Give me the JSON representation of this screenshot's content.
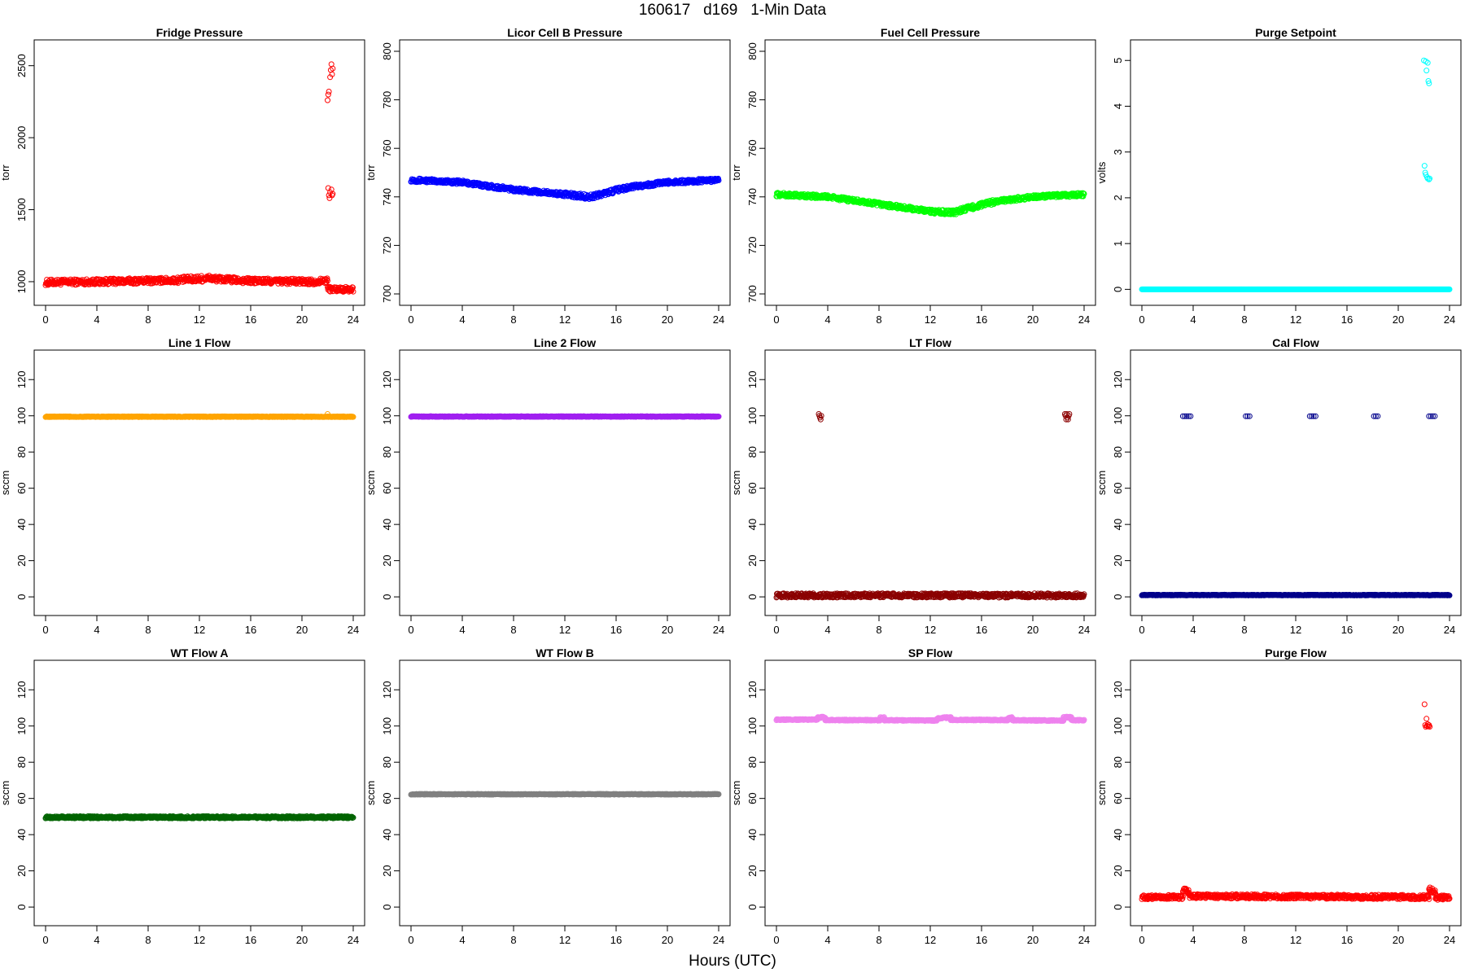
{
  "figure": {
    "title": "160617   d169   1-Min Data",
    "xlabel": "Hours (UTC)"
  },
  "chart_data": [
    {
      "type": "scatter",
      "title": "Fridge Pressure",
      "ylabel": "torr",
      "color": "#ff0000",
      "xlim": [
        0,
        24
      ],
      "ylim": [
        915,
        2600
      ],
      "xticks": [
        0,
        4,
        8,
        12,
        16,
        20,
        24
      ],
      "yticks": [
        1000,
        1500,
        2000,
        2500
      ],
      "series": [
        {
          "segments": [
            {
              "x0": 0,
              "x1": 4,
              "y0": 995,
              "y1": 1000,
              "jitter": 20
            },
            {
              "x0": 4,
              "x1": 10,
              "y0": 1000,
              "y1": 1010,
              "jitter": 20
            },
            {
              "x0": 10,
              "x1": 13,
              "y0": 1010,
              "y1": 1025,
              "jitter": 22
            },
            {
              "x0": 13,
              "x1": 16,
              "y0": 1020,
              "y1": 1005,
              "jitter": 20
            },
            {
              "x0": 16,
              "x1": 21,
              "y0": 1005,
              "y1": 1000,
              "jitter": 20
            },
            {
              "x0": 21,
              "x1": 22,
              "y0": 1000,
              "y1": 1010,
              "jitter": 18
            },
            {
              "x0": 22,
              "x1": 24,
              "y0": 950,
              "y1": 945,
              "jitter": 18
            }
          ]
        },
        {
          "points": [
            {
              "x": 22.0,
              "y": 2260
            },
            {
              "x": 22.05,
              "y": 2300
            },
            {
              "x": 22.1,
              "y": 2320
            },
            {
              "x": 22.2,
              "y": 2420
            },
            {
              "x": 22.25,
              "y": 2470
            },
            {
              "x": 22.3,
              "y": 2510
            },
            {
              "x": 22.35,
              "y": 2440
            },
            {
              "x": 22.4,
              "y": 2480
            },
            {
              "x": 22.05,
              "y": 1650
            },
            {
              "x": 22.1,
              "y": 1600
            },
            {
              "x": 22.15,
              "y": 1580
            },
            {
              "x": 22.2,
              "y": 1620
            },
            {
              "x": 22.3,
              "y": 1640
            },
            {
              "x": 22.35,
              "y": 1600
            },
            {
              "x": 22.4,
              "y": 1610
            }
          ]
        }
      ]
    },
    {
      "type": "scatter",
      "title": "Licor Cell B Pressure",
      "ylabel": "torr",
      "color": "#0000ff",
      "xlim": [
        0,
        24
      ],
      "ylim": [
        700,
        800
      ],
      "xticks": [
        0,
        4,
        8,
        12,
        16,
        20,
        24
      ],
      "yticks": [
        700,
        720,
        740,
        760,
        780,
        800
      ],
      "series": [
        {
          "segments": [
            {
              "x0": 0,
              "x1": 4,
              "y0": 747,
              "y1": 746,
              "jitter": 0.8
            },
            {
              "x0": 4,
              "x1": 8,
              "y0": 746,
              "y1": 743,
              "jitter": 0.8
            },
            {
              "x0": 8,
              "x1": 12,
              "y0": 743,
              "y1": 741,
              "jitter": 0.8
            },
            {
              "x0": 12,
              "x1": 14,
              "y0": 741,
              "y1": 740,
              "jitter": 1.0
            },
            {
              "x0": 14,
              "x1": 17,
              "y0": 740,
              "y1": 744,
              "jitter": 1.0
            },
            {
              "x0": 17,
              "x1": 20,
              "y0": 744,
              "y1": 746,
              "jitter": 0.8
            },
            {
              "x0": 20,
              "x1": 24,
              "y0": 746,
              "y1": 747,
              "jitter": 0.8
            }
          ]
        }
      ]
    },
    {
      "type": "scatter",
      "title": "Fuel Cell Pressure",
      "ylabel": "torr",
      "color": "#00ff00",
      "xlim": [
        0,
        24
      ],
      "ylim": [
        700,
        800
      ],
      "xticks": [
        0,
        4,
        8,
        12,
        16,
        20,
        24
      ],
      "yticks": [
        700,
        720,
        740,
        760,
        780,
        800
      ],
      "series": [
        {
          "segments": [
            {
              "x0": 0,
              "x1": 4,
              "y0": 741,
              "y1": 740,
              "jitter": 0.8
            },
            {
              "x0": 4,
              "x1": 8,
              "y0": 740,
              "y1": 737,
              "jitter": 0.8
            },
            {
              "x0": 8,
              "x1": 12,
              "y0": 737,
              "y1": 734,
              "jitter": 0.8
            },
            {
              "x0": 12,
              "x1": 14,
              "y0": 734,
              "y1": 733.5,
              "jitter": 1.0
            },
            {
              "x0": 14,
              "x1": 17,
              "y0": 734,
              "y1": 738,
              "jitter": 1.0
            },
            {
              "x0": 17,
              "x1": 20,
              "y0": 738,
              "y1": 740,
              "jitter": 0.8
            },
            {
              "x0": 20,
              "x1": 24,
              "y0": 740,
              "y1": 741,
              "jitter": 0.8
            }
          ]
        }
      ]
    },
    {
      "type": "scatter",
      "title": "Purge Setpoint",
      "ylabel": "volts",
      "color": "#00ffff",
      "xlim": [
        0,
        24
      ],
      "ylim": [
        -0.1,
        5.2
      ],
      "xticks": [
        0,
        4,
        8,
        12,
        16,
        20,
        24
      ],
      "yticks": [
        0,
        1,
        2,
        3,
        4,
        5
      ],
      "series": [
        {
          "segments": [
            {
              "x0": 0,
              "x1": 24,
              "y0": 0,
              "y1": 0,
              "jitter": 0
            }
          ]
        },
        {
          "points": [
            {
              "x": 22.0,
              "y": 5.0
            },
            {
              "x": 22.15,
              "y": 4.98
            },
            {
              "x": 22.3,
              "y": 4.95
            },
            {
              "x": 22.2,
              "y": 4.78
            },
            {
              "x": 22.35,
              "y": 4.55
            },
            {
              "x": 22.4,
              "y": 4.5
            },
            {
              "x": 22.05,
              "y": 2.7
            },
            {
              "x": 22.1,
              "y": 2.55
            },
            {
              "x": 22.15,
              "y": 2.5
            },
            {
              "x": 22.25,
              "y": 2.45
            },
            {
              "x": 22.3,
              "y": 2.42
            },
            {
              "x": 22.4,
              "y": 2.4
            },
            {
              "x": 22.45,
              "y": 2.42
            }
          ]
        }
      ]
    },
    {
      "type": "scatter",
      "title": "Line 1 Flow",
      "ylabel": "sccm",
      "color": "#ffa500",
      "xlim": [
        0,
        24
      ],
      "ylim": [
        -4,
        130
      ],
      "xticks": [
        0,
        4,
        8,
        12,
        16,
        20,
        24
      ],
      "yticks": [
        0,
        20,
        40,
        60,
        80,
        100,
        120
      ],
      "series": [
        {
          "segments": [
            {
              "x0": 0,
              "x1": 24,
              "y0": 99.5,
              "y1": 99.5,
              "jitter": 0.2
            }
          ]
        },
        {
          "points": [
            {
              "x": 22.0,
              "y": 101
            }
          ]
        }
      ]
    },
    {
      "type": "scatter",
      "title": "Line 2 Flow",
      "ylabel": "sccm",
      "color": "#a020f0",
      "xlim": [
        0,
        24
      ],
      "ylim": [
        -4,
        130
      ],
      "xticks": [
        0,
        4,
        8,
        12,
        16,
        20,
        24
      ],
      "yticks": [
        0,
        20,
        40,
        60,
        80,
        100,
        120
      ],
      "series": [
        {
          "segments": [
            {
              "x0": 0,
              "x1": 24,
              "y0": 99.6,
              "y1": 99.6,
              "jitter": 0.2
            }
          ]
        }
      ]
    },
    {
      "type": "scatter",
      "title": "LT Flow",
      "ylabel": "sccm",
      "color": "#8b0000",
      "xlim": [
        0,
        24
      ],
      "ylim": [
        -4,
        130
      ],
      "xticks": [
        0,
        4,
        8,
        12,
        16,
        20,
        24
      ],
      "yticks": [
        0,
        20,
        40,
        60,
        80,
        100,
        120
      ],
      "series": [
        {
          "segments": [
            {
              "x0": 0,
              "x1": 24,
              "y0": 0.8,
              "y1": 0.8,
              "jitter": 1.2
            }
          ]
        },
        {
          "points": [
            {
              "x": 3.3,
              "y": 101
            },
            {
              "x": 3.35,
              "y": 100
            },
            {
              "x": 3.4,
              "y": 99
            },
            {
              "x": 3.45,
              "y": 98
            },
            {
              "x": 3.5,
              "y": 100
            },
            {
              "x": 22.5,
              "y": 101
            },
            {
              "x": 22.55,
              "y": 100
            },
            {
              "x": 22.6,
              "y": 98
            },
            {
              "x": 22.65,
              "y": 101
            },
            {
              "x": 22.7,
              "y": 99
            },
            {
              "x": 22.75,
              "y": 98
            },
            {
              "x": 22.8,
              "y": 100
            },
            {
              "x": 22.85,
              "y": 101
            }
          ]
        }
      ]
    },
    {
      "type": "scatter",
      "title": "Cal Flow",
      "ylabel": "sccm",
      "color": "#00008b",
      "xlim": [
        0,
        24
      ],
      "ylim": [
        -4,
        130
      ],
      "xticks": [
        0,
        4,
        8,
        12,
        16,
        20,
        24
      ],
      "yticks": [
        0,
        20,
        40,
        60,
        80,
        100,
        120
      ],
      "series": [
        {
          "segments": [
            {
              "x0": 0,
              "x1": 24,
              "y0": 1.0,
              "y1": 1.0,
              "jitter": 0.2
            }
          ]
        },
        {
          "points": [
            {
              "x": 3.2,
              "y": 99.8
            },
            {
              "x": 3.35,
              "y": 99.8
            },
            {
              "x": 3.5,
              "y": 99.8
            },
            {
              "x": 3.65,
              "y": 99.8
            },
            {
              "x": 3.8,
              "y": 99.8
            },
            {
              "x": 8.1,
              "y": 99.8
            },
            {
              "x": 8.25,
              "y": 99.8
            },
            {
              "x": 8.4,
              "y": 99.8
            },
            {
              "x": 13.1,
              "y": 99.8
            },
            {
              "x": 13.25,
              "y": 99.8
            },
            {
              "x": 13.4,
              "y": 99.8
            },
            {
              "x": 13.55,
              "y": 99.8
            },
            {
              "x": 18.1,
              "y": 99.8
            },
            {
              "x": 18.25,
              "y": 99.8
            },
            {
              "x": 18.4,
              "y": 99.8
            },
            {
              "x": 22.4,
              "y": 99.8
            },
            {
              "x": 22.55,
              "y": 99.8
            },
            {
              "x": 22.7,
              "y": 99.8
            },
            {
              "x": 22.85,
              "y": 99.8
            }
          ]
        }
      ]
    },
    {
      "type": "scatter",
      "title": "WT Flow A",
      "ylabel": "sccm",
      "color": "#006400",
      "xlim": [
        0,
        24
      ],
      "ylim": [
        -4,
        130
      ],
      "xticks": [
        0,
        4,
        8,
        12,
        16,
        20,
        24
      ],
      "yticks": [
        0,
        20,
        40,
        60,
        80,
        100,
        120
      ],
      "series": [
        {
          "segments": [
            {
              "x0": 0,
              "x1": 24,
              "y0": 49.6,
              "y1": 49.6,
              "jitter": 0.6
            }
          ]
        }
      ]
    },
    {
      "type": "scatter",
      "title": "WT Flow B",
      "ylabel": "sccm",
      "color": "#808080",
      "xlim": [
        0,
        24
      ],
      "ylim": [
        -4,
        130
      ],
      "xticks": [
        0,
        4,
        8,
        12,
        16,
        20,
        24
      ],
      "yticks": [
        0,
        20,
        40,
        60,
        80,
        100,
        120
      ],
      "series": [
        {
          "segments": [
            {
              "x0": 0,
              "x1": 24,
              "y0": 62.3,
              "y1": 62.3,
              "jitter": 0.2
            }
          ]
        }
      ]
    },
    {
      "type": "scatter",
      "title": "SP Flow",
      "ylabel": "sccm",
      "color": "#ee82ee",
      "xlim": [
        0,
        24
      ],
      "ylim": [
        -4,
        130
      ],
      "xticks": [
        0,
        4,
        8,
        12,
        16,
        20,
        24
      ],
      "yticks": [
        0,
        20,
        40,
        60,
        80,
        100,
        120
      ],
      "series": [
        {
          "segments": [
            {
              "x0": 0,
              "x1": 3.2,
              "y0": 103.5,
              "y1": 103.5,
              "jitter": 0.3
            },
            {
              "x0": 3.2,
              "x1": 3.8,
              "y0": 104.8,
              "y1": 104.8,
              "jitter": 0.4
            },
            {
              "x0": 3.8,
              "x1": 8.1,
              "y0": 103.3,
              "y1": 103.2,
              "jitter": 0.3
            },
            {
              "x0": 8.1,
              "x1": 8.4,
              "y0": 104.6,
              "y1": 104.6,
              "jitter": 0.4
            },
            {
              "x0": 8.4,
              "x1": 12.5,
              "y0": 103.2,
              "y1": 103.0,
              "jitter": 0.3
            },
            {
              "x0": 12.5,
              "x1": 13.6,
              "y0": 104.2,
              "y1": 104.8,
              "jitter": 0.4
            },
            {
              "x0": 13.6,
              "x1": 18.1,
              "y0": 103.4,
              "y1": 103.3,
              "jitter": 0.3
            },
            {
              "x0": 18.1,
              "x1": 18.4,
              "y0": 104.6,
              "y1": 104.6,
              "jitter": 0.4
            },
            {
              "x0": 18.4,
              "x1": 22.4,
              "y0": 103.2,
              "y1": 103.0,
              "jitter": 0.3
            },
            {
              "x0": 22.4,
              "x1": 23.0,
              "y0": 104.8,
              "y1": 104.8,
              "jitter": 0.4
            },
            {
              "x0": 23.0,
              "x1": 24,
              "y0": 103.2,
              "y1": 103.2,
              "jitter": 0.3
            }
          ]
        }
      ]
    },
    {
      "type": "scatter",
      "title": "Purge Flow",
      "ylabel": "sccm",
      "color": "#ff0000",
      "xlim": [
        0,
        24
      ],
      "ylim": [
        -4,
        130
      ],
      "xticks": [
        0,
        4,
        8,
        12,
        16,
        20,
        24
      ],
      "yticks": [
        0,
        20,
        40,
        60,
        80,
        100,
        120
      ],
      "series": [
        {
          "segments": [
            {
              "x0": 0,
              "x1": 3.2,
              "y0": 5.5,
              "y1": 5.5,
              "jitter": 1.2
            },
            {
              "x0": 3.2,
              "x1": 3.7,
              "y0": 9.5,
              "y1": 8.5,
              "jitter": 1.5
            },
            {
              "x0": 3.7,
              "x1": 22.4,
              "y0": 6.0,
              "y1": 5.5,
              "jitter": 1.2
            },
            {
              "x0": 22.4,
              "x1": 22.9,
              "y0": 9.5,
              "y1": 8.5,
              "jitter": 1.5
            },
            {
              "x0": 22.9,
              "x1": 24,
              "y0": 5.0,
              "y1": 5.5,
              "jitter": 1.2
            }
          ]
        },
        {
          "points": [
            {
              "x": 22.05,
              "y": 112
            },
            {
              "x": 22.2,
              "y": 104
            },
            {
              "x": 22.1,
              "y": 100.5
            },
            {
              "x": 22.15,
              "y": 99.5
            },
            {
              "x": 22.25,
              "y": 100
            },
            {
              "x": 22.3,
              "y": 101
            },
            {
              "x": 22.35,
              "y": 99.8
            },
            {
              "x": 22.4,
              "y": 100.5
            },
            {
              "x": 22.45,
              "y": 99.6
            }
          ]
        }
      ]
    }
  ]
}
